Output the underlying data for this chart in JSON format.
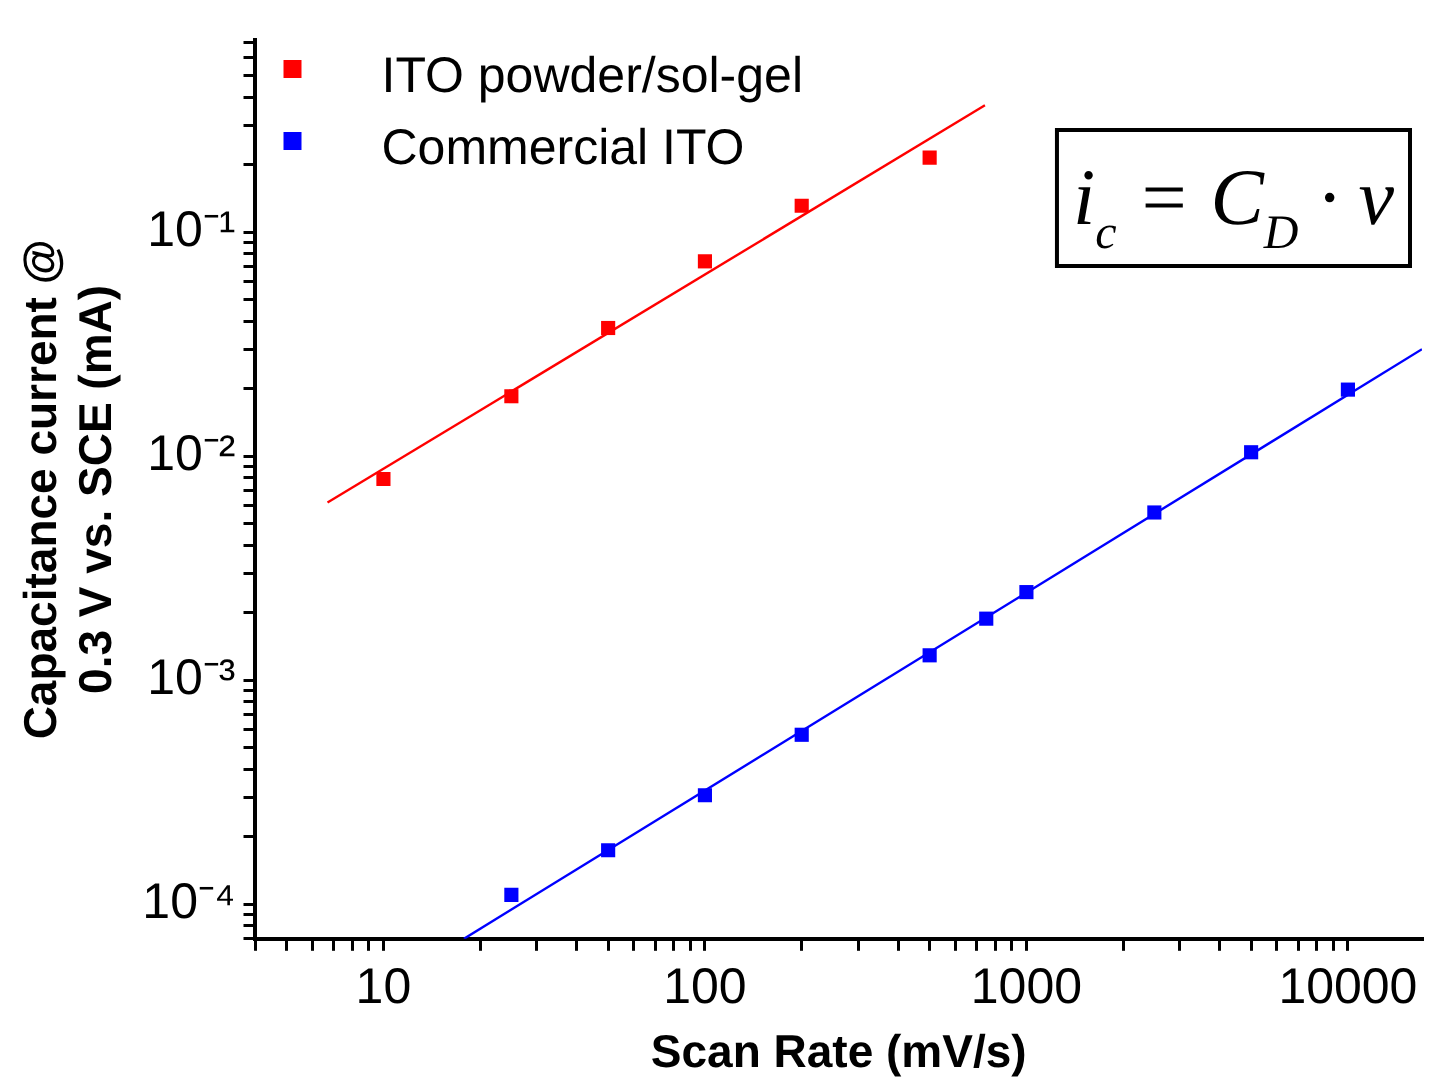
{
  "chart_data": {
    "type": "scatter",
    "xlabel": "Scan Rate (mV/s)",
    "ylabel": "Capacitance current @\n0.3 V vs. SCE (mA)",
    "log": "xy",
    "xlim": [
      4,
      17000
    ],
    "ylim": [
      7e-05,
      0.72
    ],
    "xticks": [
      {
        "value": 4,
        "label": null
      },
      {
        "value": 5,
        "label": null
      },
      {
        "value": 6,
        "label": null
      },
      {
        "value": 7,
        "label": null
      },
      {
        "value": 8,
        "label": null
      },
      {
        "value": 9,
        "label": null
      },
      10,
      {
        "value": 20,
        "label": null
      },
      {
        "value": 30,
        "label": null
      },
      {
        "value": 40,
        "label": null
      },
      {
        "value": 50,
        "label": null
      },
      {
        "value": 60,
        "label": null
      },
      {
        "value": 70,
        "label": null
      },
      {
        "value": 80,
        "label": null
      },
      {
        "value": 90,
        "label": null
      },
      100,
      {
        "value": 200,
        "label": null
      },
      {
        "value": 300,
        "label": null
      },
      {
        "value": 400,
        "label": null
      },
      {
        "value": 500,
        "label": null
      },
      {
        "value": 600,
        "label": null
      },
      {
        "value": 700,
        "label": null
      },
      {
        "value": 800,
        "label": null
      },
      {
        "value": 900,
        "label": null
      },
      1000,
      {
        "value": 2000,
        "label": null
      },
      {
        "value": 3000,
        "label": null
      },
      {
        "value": 4000,
        "label": null
      },
      {
        "value": 5000,
        "label": null
      },
      {
        "value": 6000,
        "label": null
      },
      {
        "value": 7000,
        "label": null
      },
      {
        "value": 8000,
        "label": null
      },
      {
        "value": 9000,
        "label": null
      },
      10000
    ],
    "yticks": [
      {
        "value": 7e-05,
        "label": null
      },
      {
        "value": 8e-05,
        "label": null
      },
      {
        "value": 9e-05,
        "label": null
      },
      {
        "value": 0.0001,
        "label": "10⁻⁴"
      },
      {
        "value": 0.0002,
        "label": null
      },
      {
        "value": 0.0003,
        "label": null
      },
      {
        "value": 0.0004,
        "label": null
      },
      {
        "value": 0.0005,
        "label": null
      },
      {
        "value": 0.0006,
        "label": null
      },
      {
        "value": 0.0007,
        "label": null
      },
      {
        "value": 0.0008,
        "label": null
      },
      {
        "value": 0.0009,
        "label": null
      },
      {
        "value": 0.001,
        "label": "10⁻³"
      },
      {
        "value": 0.002,
        "label": null
      },
      {
        "value": 0.003,
        "label": null
      },
      {
        "value": 0.004,
        "label": null
      },
      {
        "value": 0.005,
        "label": null
      },
      {
        "value": 0.006,
        "label": null
      },
      {
        "value": 0.007,
        "label": null
      },
      {
        "value": 0.008,
        "label": null
      },
      {
        "value": 0.009,
        "label": null
      },
      {
        "value": 0.01,
        "label": "10⁻²"
      },
      {
        "value": 0.02,
        "label": null
      },
      {
        "value": 0.03,
        "label": null
      },
      {
        "value": 0.04,
        "label": null
      },
      {
        "value": 0.05,
        "label": null
      },
      {
        "value": 0.06,
        "label": null
      },
      {
        "value": 0.07,
        "label": null
      },
      {
        "value": 0.08,
        "label": null
      },
      {
        "value": 0.09,
        "label": null
      },
      {
        "value": 0.1,
        "label": "10⁻¹"
      },
      {
        "value": 0.2,
        "label": null
      },
      {
        "value": 0.3,
        "label": null
      },
      {
        "value": 0.4,
        "label": null
      },
      {
        "value": 0.5,
        "label": null
      },
      {
        "value": 0.6,
        "label": null
      },
      {
        "value": 0.7,
        "label": null
      }
    ],
    "grid": false,
    "legend": "top left",
    "marker": "square",
    "series": [
      {
        "name": "ITO powder/sol-gel",
        "color": "#ff0000",
        "x": [
          10,
          25,
          50,
          100,
          200,
          500
        ],
        "values": [
          0.0079,
          0.0185,
          0.0373,
          0.074,
          0.131,
          0.215
        ]
      },
      {
        "name": "Commercial ITO",
        "color": "#0000ff",
        "x": [
          25,
          50,
          100,
          200,
          500,
          750,
          1000,
          2500,
          5000,
          10000
        ],
        "values": [
          0.00011,
          0.000174,
          0.000306,
          0.00057,
          0.00129,
          0.00188,
          0.00247,
          0.0056,
          0.0104,
          0.0198
        ]
      },
      {
        "type": "line",
        "color": "#ff0000",
        "marker": "none",
        "x": [
          6.7,
          743
        ],
        "values": [
          0.0062,
          0.368
        ]
      },
      {
        "type": "line",
        "color": "#0000ff",
        "marker": "none",
        "x": [
          17.8,
          17000
        ],
        "values": [
          7e-05,
          0.03
        ]
      }
    ],
    "annotations": [
      "i$_{c}$ = C$_{D}$ · ν"
    ]
  }
}
